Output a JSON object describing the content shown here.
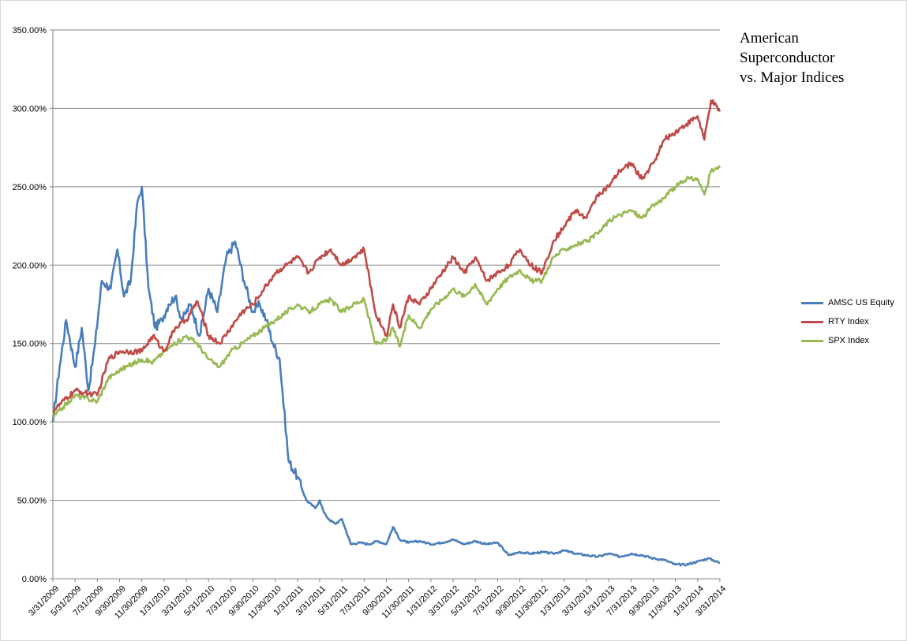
{
  "chart_data": {
    "type": "line",
    "title_lines": [
      "American",
      "Superconductor",
      "vs. Major Indices"
    ],
    "xlabel": "",
    "ylabel": "",
    "ylim": [
      0,
      350
    ],
    "y_ticks": [
      "0.00%",
      "50.00%",
      "100.00%",
      "150.00%",
      "200.00%",
      "250.00%",
      "300.00%",
      "350.00%"
    ],
    "y_tick_values": [
      0,
      50,
      100,
      150,
      200,
      250,
      300,
      350
    ],
    "x_ticks": [
      "3/31/2009",
      "5/31/2009",
      "7/31/2009",
      "9/30/2009",
      "11/30/2009",
      "1/31/2010",
      "3/31/2010",
      "5/31/2010",
      "7/31/2010",
      "9/30/2010",
      "11/30/2010",
      "1/31/2011",
      "3/31/2011",
      "5/31/2011",
      "7/31/2011",
      "9/30/2011",
      "11/30/2011",
      "1/31/2012",
      "3/31/2012",
      "5/31/2012",
      "7/31/2012",
      "9/30/2012",
      "11/30/2012",
      "1/31/2013",
      "3/31/2013",
      "5/31/2013",
      "7/31/2013",
      "9/30/2013",
      "11/30/2013",
      "1/31/2014",
      "3/31/2014"
    ],
    "grid": true,
    "legend_position": "right",
    "series": [
      {
        "name": "AMSC US Equity",
        "color": "#4a7ebb",
        "x": [
          0,
          0.3,
          0.6,
          1.0,
          1.3,
          1.6,
          1.9,
          2.2,
          2.6,
          2.9,
          3.2,
          3.5,
          3.8,
          4.0,
          4.3,
          4.6,
          4.9,
          5.2,
          5.5,
          5.8,
          6.2,
          6.6,
          7.0,
          7.4,
          7.8,
          8.2,
          8.6,
          9.0,
          9.3,
          9.6,
          9.9,
          10.2,
          10.6,
          11.0,
          11.4,
          11.8,
          12.0,
          12.2,
          12.4,
          12.7,
          13.0,
          13.4,
          13.8,
          14.2,
          14.6,
          15.0,
          15.3,
          15.6,
          16.0,
          16.5,
          17.0,
          17.5,
          18.0,
          18.5,
          19.0,
          19.5,
          20.0,
          20.5,
          21.0,
          21.5,
          22.0,
          22.5,
          23.0,
          23.5,
          24.0,
          24.5,
          25.0,
          25.5,
          26.0,
          26.5,
          27.0,
          27.5,
          28.0,
          28.5,
          29.0,
          29.5,
          30.0
        ],
        "values": [
          100,
          135,
          165,
          135,
          160,
          120,
          150,
          190,
          185,
          210,
          180,
          190,
          240,
          250,
          185,
          160,
          165,
          175,
          180,
          165,
          175,
          155,
          185,
          170,
          205,
          215,
          190,
          170,
          175,
          165,
          150,
          140,
          75,
          65,
          50,
          45,
          50,
          42,
          38,
          35,
          38,
          22,
          23,
          22,
          24,
          22,
          33,
          25,
          23,
          24,
          22,
          23,
          25,
          22,
          24,
          22,
          23,
          15,
          17,
          16,
          17,
          16,
          18,
          16,
          15,
          14,
          16,
          14,
          16,
          15,
          13,
          12,
          9,
          9,
          11,
          13,
          10
        ]
      },
      {
        "name": "RTY Index",
        "color": "#be4b48",
        "x": [
          0,
          1.0,
          2.0,
          2.5,
          3.0,
          4.0,
          4.5,
          5.0,
          5.5,
          6.0,
          6.5,
          7.0,
          7.5,
          8.0,
          8.5,
          9.0,
          9.5,
          10.0,
          10.5,
          11.0,
          11.5,
          12.0,
          12.5,
          13.0,
          13.5,
          14.0,
          14.5,
          15.0,
          15.3,
          15.6,
          16.0,
          16.5,
          17.0,
          17.5,
          18.0,
          18.5,
          19.0,
          19.5,
          20.0,
          20.5,
          21.0,
          21.5,
          22.0,
          22.5,
          23.0,
          23.5,
          24.0,
          24.5,
          25.0,
          25.5,
          26.0,
          26.5,
          27.0,
          27.5,
          28.0,
          28.5,
          29.0,
          29.3,
          29.6,
          30.0
        ],
        "values": [
          107,
          120,
          117,
          140,
          145,
          145,
          155,
          145,
          160,
          165,
          177,
          155,
          150,
          160,
          170,
          175,
          185,
          195,
          200,
          205,
          195,
          205,
          210,
          200,
          205,
          210,
          170,
          155,
          175,
          160,
          180,
          175,
          185,
          195,
          205,
          195,
          205,
          190,
          195,
          200,
          210,
          200,
          195,
          215,
          225,
          235,
          230,
          245,
          250,
          260,
          265,
          255,
          265,
          280,
          285,
          290,
          295,
          280,
          305,
          298
        ]
      },
      {
        "name": "SPX Index",
        "color": "#98b954",
        "x": [
          0,
          1.0,
          2.0,
          2.5,
          3.0,
          4.0,
          4.5,
          5.0,
          5.5,
          6.0,
          6.5,
          7.0,
          7.5,
          8.0,
          8.5,
          9.0,
          9.5,
          10.0,
          10.5,
          11.0,
          11.5,
          12.0,
          12.5,
          13.0,
          13.5,
          14.0,
          14.5,
          15.0,
          15.3,
          15.6,
          16.0,
          16.5,
          17.0,
          17.5,
          18.0,
          18.5,
          19.0,
          19.5,
          20.0,
          20.5,
          21.0,
          21.5,
          22.0,
          22.5,
          23.0,
          23.5,
          24.0,
          24.5,
          25.0,
          25.5,
          26.0,
          26.5,
          27.0,
          27.5,
          28.0,
          28.5,
          29.0,
          29.3,
          29.6,
          30.0
        ],
        "values": [
          103,
          117,
          113,
          128,
          133,
          140,
          138,
          145,
          150,
          155,
          150,
          140,
          135,
          145,
          150,
          155,
          160,
          165,
          170,
          175,
          170,
          175,
          178,
          170,
          175,
          178,
          150,
          152,
          160,
          148,
          168,
          160,
          172,
          178,
          185,
          180,
          188,
          175,
          185,
          192,
          197,
          190,
          190,
          205,
          210,
          213,
          215,
          220,
          228,
          232,
          235,
          230,
          238,
          243,
          250,
          255,
          255,
          245,
          260,
          262
        ]
      }
    ]
  }
}
